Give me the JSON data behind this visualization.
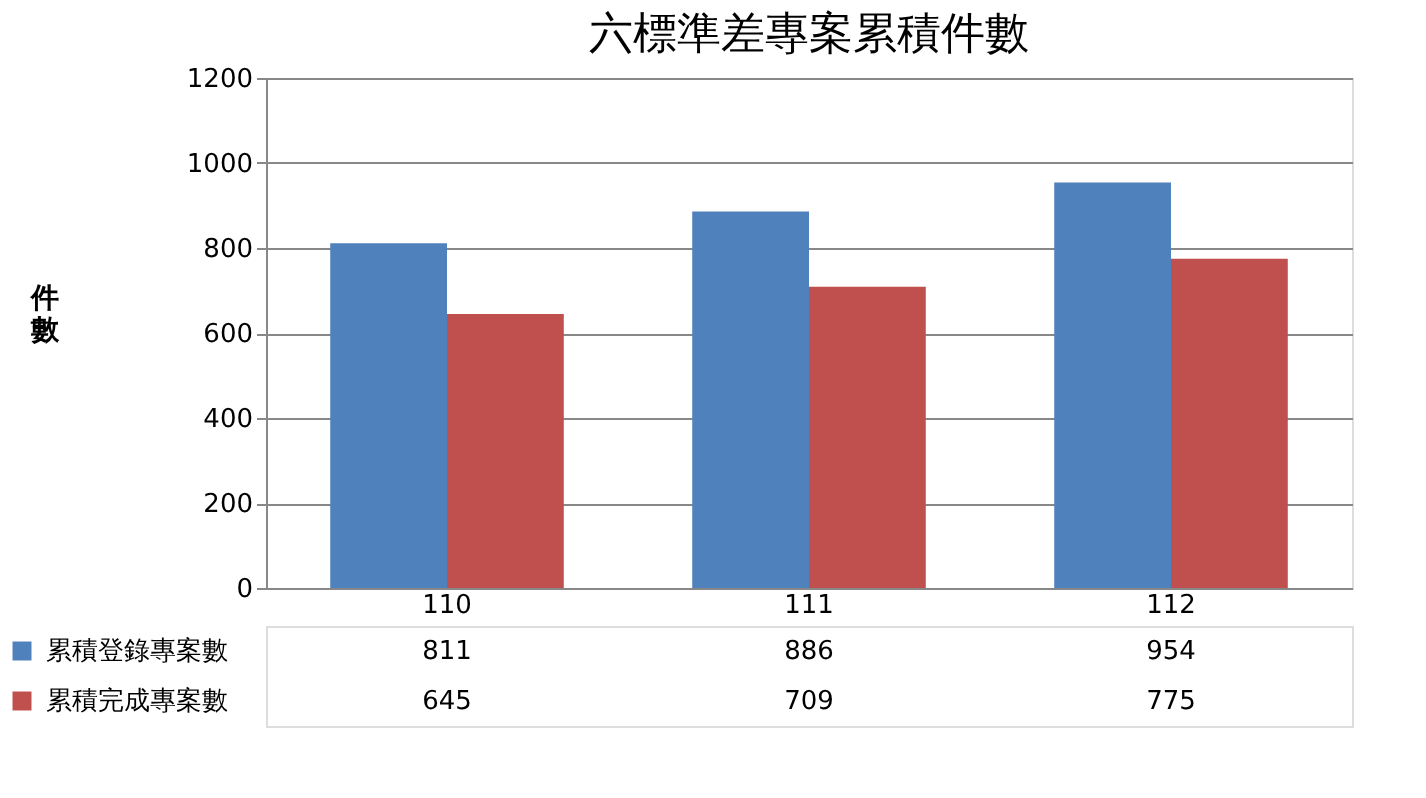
{
  "chart_data": {
    "type": "bar",
    "title": "六標準差專案累積件數",
    "ylabel": "件數",
    "categories": [
      "110",
      "111",
      "112"
    ],
    "series": [
      {
        "name": "累積登錄專案數",
        "color": "#4f81bd",
        "values": [
          811,
          886,
          954
        ]
      },
      {
        "name": "累積完成專案數",
        "color": "#c0504d",
        "values": [
          645,
          709,
          775
        ]
      }
    ],
    "ylim": [
      0,
      1200
    ],
    "yticks": [
      0,
      200,
      400,
      600,
      800,
      1000,
      1200
    ],
    "grid": "y",
    "data_labels": true,
    "legend": "bottom"
  }
}
